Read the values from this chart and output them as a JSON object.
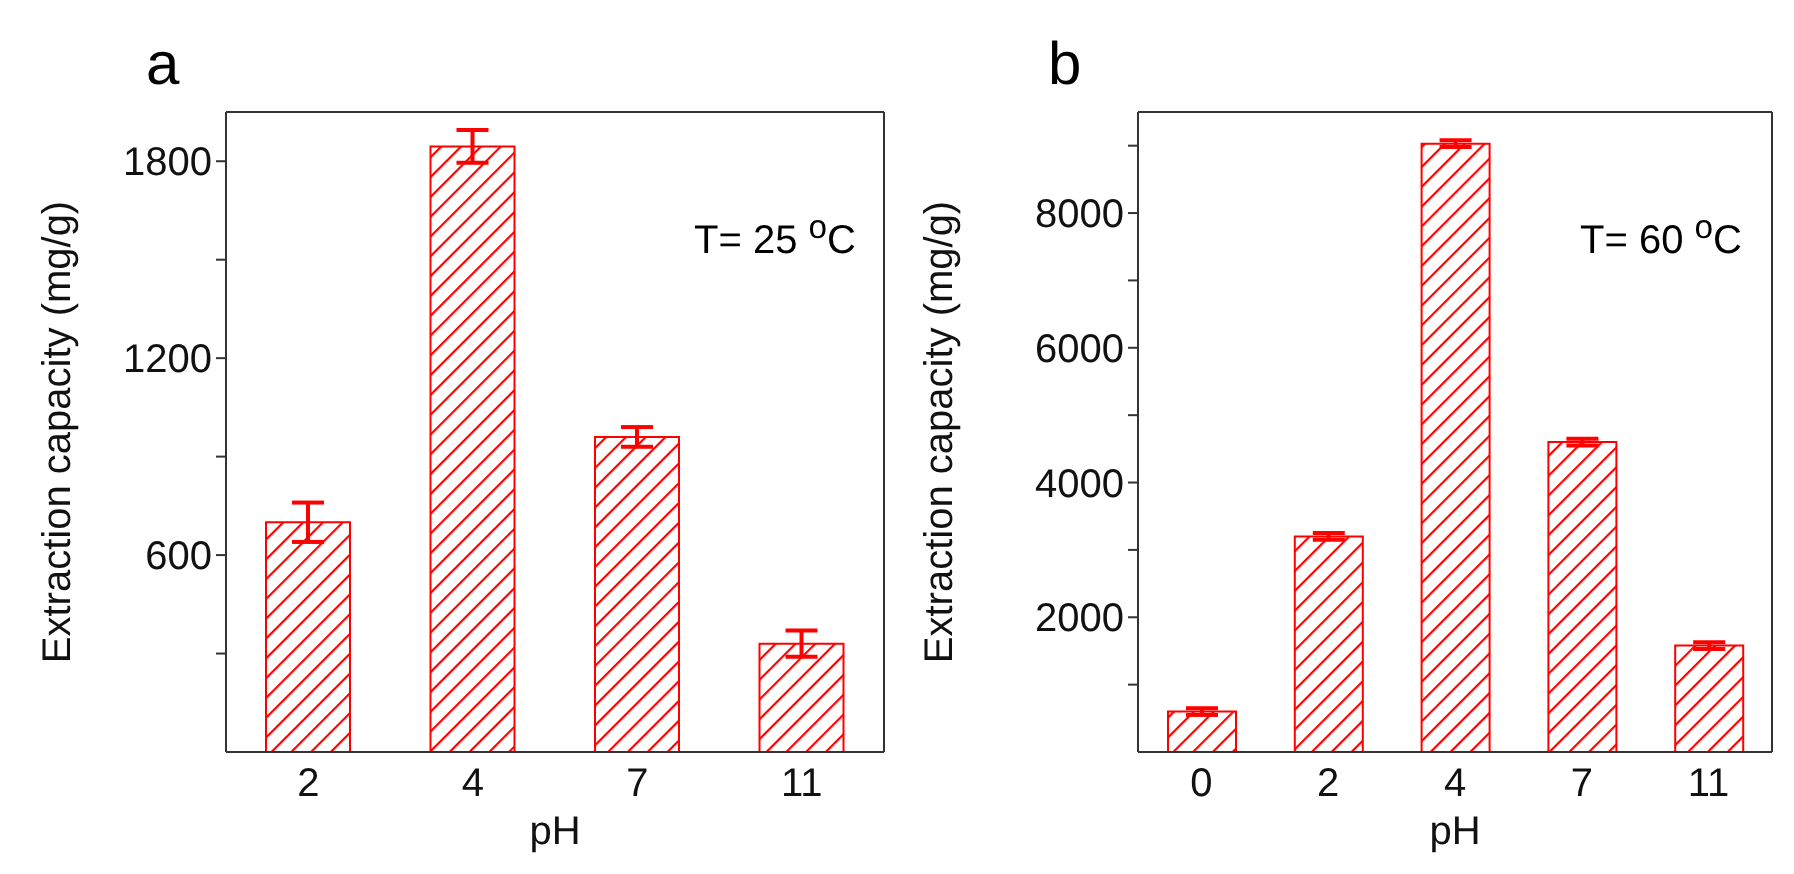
{
  "chart_data": [
    {
      "type": "bar",
      "title": "a",
      "xlabel": "pH",
      "ylabel": "Extraction capacity (mg/g)",
      "categories": [
        "2",
        "4",
        "7",
        "11"
      ],
      "values": [
        700,
        1845,
        960,
        330
      ],
      "errors": [
        60,
        50,
        30,
        40
      ],
      "color": "#ff0000",
      "ylim": [
        0,
        1950
      ],
      "yticks": [
        {
          "value": 300,
          "label": null
        },
        600,
        {
          "value": 900,
          "label": null
        },
        1200,
        {
          "value": 1500,
          "label": null
        },
        1800
      ],
      "grid": false,
      "legend": false,
      "annotations": [
        "T= 25 $^{o}$C"
      ]
    },
    {
      "type": "bar",
      "title": "b",
      "xlabel": "pH",
      "ylabel": "Extraction capacity (mg/g)",
      "categories": [
        "0",
        "2",
        "4",
        "7",
        "11"
      ],
      "values": [
        600,
        3200,
        9030,
        4600,
        1580
      ],
      "errors": [
        50,
        50,
        50,
        50,
        50
      ],
      "color": "#ff0000",
      "ylim": [
        0,
        9500
      ],
      "yticks": [
        {
          "value": 1000,
          "label": null
        },
        2000,
        {
          "value": 3000,
          "label": null
        },
        4000,
        {
          "value": 5000,
          "label": null
        },
        6000,
        {
          "value": 7000,
          "label": null
        },
        8000,
        {
          "value": 9000,
          "label": null
        }
      ],
      "grid": false,
      "legend": false,
      "annotations": [
        "T= 60 $^{o}$C"
      ]
    }
  ]
}
